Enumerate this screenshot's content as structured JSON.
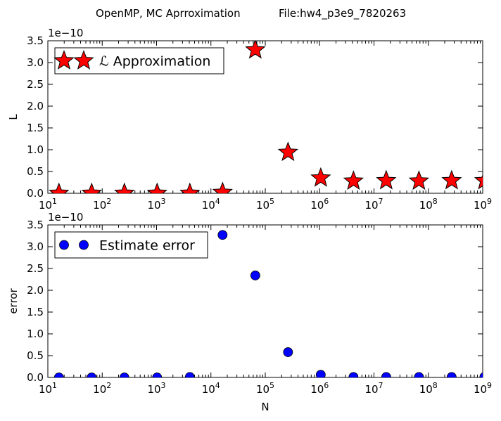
{
  "figure": {
    "suptitle_left": "OpenMP, MC Aprroximation",
    "suptitle_right": "File:hw4_p3e9_7820263"
  },
  "chart_data": [
    {
      "type": "scatter",
      "title": "",
      "xlabel": "",
      "ylabel": "L",
      "offset_label": "1e−10",
      "xscale": "log",
      "xlim": [
        10,
        1000000000
      ],
      "ylim": [
        0,
        3.5
      ],
      "y_multiplier": 1e-10,
      "xticks": [
        {
          "base": "10",
          "exp": "1"
        },
        {
          "base": "10",
          "exp": "2"
        },
        {
          "base": "10",
          "exp": "3"
        },
        {
          "base": "10",
          "exp": "4"
        },
        {
          "base": "10",
          "exp": "5"
        },
        {
          "base": "10",
          "exp": "6"
        },
        {
          "base": "10",
          "exp": "7"
        },
        {
          "base": "10",
          "exp": "8"
        },
        {
          "base": "10",
          "exp": "9"
        }
      ],
      "yticks": [
        "0.0",
        "0.5",
        "1.0",
        "1.5",
        "2.0",
        "2.5",
        "3.0",
        "3.5"
      ],
      "grid": false,
      "legend_position": "top-left",
      "series": [
        {
          "name": "Approximation",
          "name_prefix": "ℒ",
          "marker": "star",
          "color": "#ff0000",
          "x": [
            16,
            64,
            256,
            1024,
            4096,
            16384,
            65536,
            262144,
            1048576,
            4194304,
            16777216,
            67108864,
            268435456,
            1073741824
          ],
          "y": [
            0.0,
            0.0,
            0.0,
            0.0,
            0.0,
            0.02,
            3.29,
            0.94,
            0.35,
            0.28,
            0.29,
            0.28,
            0.29,
            0.29
          ]
        }
      ]
    },
    {
      "type": "scatter",
      "title": "",
      "xlabel": "N",
      "ylabel": "error",
      "offset_label": "1e−10",
      "xscale": "log",
      "xlim": [
        10,
        1000000000
      ],
      "ylim": [
        0,
        3.5
      ],
      "y_multiplier": 1e-10,
      "xticks": [
        {
          "base": "10",
          "exp": "1"
        },
        {
          "base": "10",
          "exp": "2"
        },
        {
          "base": "10",
          "exp": "3"
        },
        {
          "base": "10",
          "exp": "4"
        },
        {
          "base": "10",
          "exp": "5"
        },
        {
          "base": "10",
          "exp": "6"
        },
        {
          "base": "10",
          "exp": "7"
        },
        {
          "base": "10",
          "exp": "8"
        },
        {
          "base": "10",
          "exp": "9"
        }
      ],
      "yticks": [
        "0.0",
        "0.5",
        "1.0",
        "1.5",
        "2.0",
        "2.5",
        "3.0",
        "3.5"
      ],
      "grid": false,
      "legend_position": "top-left",
      "series": [
        {
          "name": "Estimate error",
          "marker": "circle",
          "color": "#0000ff",
          "x": [
            16,
            64,
            256,
            1024,
            4096,
            16384,
            65536,
            262144,
            1048576,
            4194304,
            16777216,
            67108864,
            268435456,
            1073741824
          ],
          "y": [
            0.0,
            0.0,
            0.0,
            0.0,
            0.01,
            3.27,
            2.34,
            0.58,
            0.06,
            0.01,
            0.01,
            0.01,
            0.01,
            0.01
          ]
        }
      ]
    }
  ]
}
